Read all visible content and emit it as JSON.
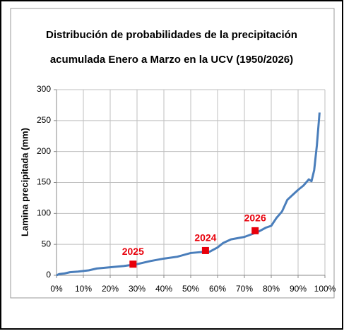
{
  "chart_data": {
    "type": "line",
    "title": [
      "Distribución de probabilidades de la precipitación",
      "acumulada Enero a Marzo en la UCV (1950/2026)"
    ],
    "y_label": "Lamina precipitada (mm)",
    "x": [
      0,
      1,
      3,
      5,
      8,
      10,
      12,
      15,
      20,
      25,
      30,
      35,
      40,
      45,
      50,
      55,
      57,
      60,
      62,
      65,
      70,
      75,
      78,
      80,
      82,
      84,
      86,
      88,
      90,
      92,
      94,
      95,
      96,
      97,
      98
    ],
    "series": [
      {
        "color": "#4a7ebb",
        "values": [
          0,
          2,
          3,
          5,
          6,
          7,
          8,
          11,
          13,
          15,
          18,
          23,
          27,
          30,
          36,
          38,
          38,
          45,
          52,
          58,
          62,
          70,
          77,
          80,
          93,
          103,
          122,
          130,
          138,
          145,
          155,
          152,
          170,
          210,
          263
        ]
      }
    ],
    "highlights": [
      {
        "label": "2025",
        "x": 28.5,
        "y": 18
      },
      {
        "label": "2024",
        "x": 55.5,
        "y": 40
      },
      {
        "label": "2026",
        "x": 74,
        "y": 72
      }
    ],
    "highlight_color": "#e8000b",
    "xlim": [
      0,
      100
    ],
    "xticks": [
      {
        "value": 0,
        "label": "0%"
      },
      {
        "value": 10,
        "label": "10%"
      },
      {
        "value": 20,
        "label": "20%"
      },
      {
        "value": 30,
        "label": "30%"
      },
      {
        "value": 40,
        "label": "40%"
      },
      {
        "value": 50,
        "label": "50%"
      },
      {
        "value": 60,
        "label": "60%"
      },
      {
        "value": 70,
        "label": "70%"
      },
      {
        "value": 80,
        "label": "80%"
      },
      {
        "value": 90,
        "label": "90%"
      },
      {
        "value": 100,
        "label": "100%"
      }
    ],
    "ylim": [
      0,
      300
    ],
    "yticks": [
      0,
      50,
      100,
      150,
      200,
      250,
      300
    ],
    "grid": true
  }
}
